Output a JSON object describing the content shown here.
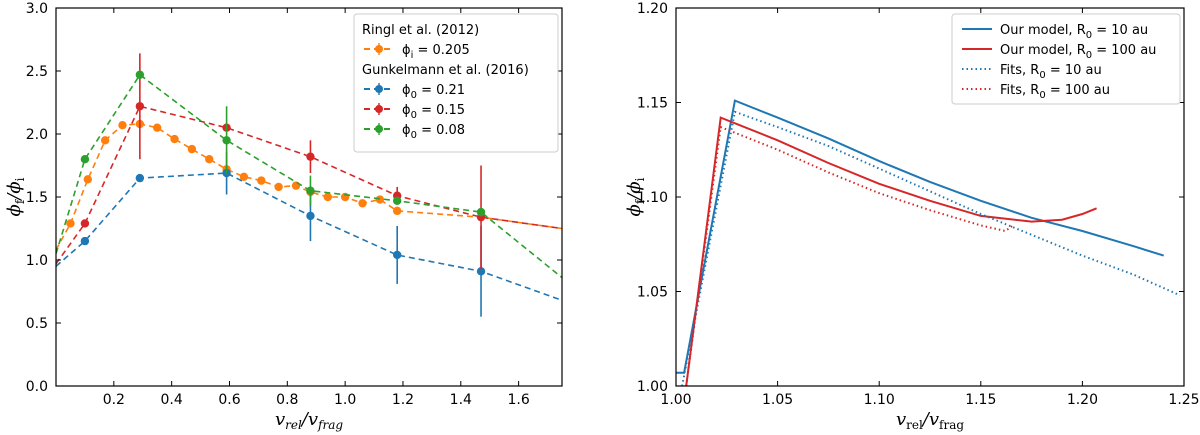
{
  "chart_data": [
    {
      "type": "line",
      "xlabel": "v_rel/v_frag",
      "ylabel": "φ_f/φ_i",
      "xlim": [
        0.0,
        1.75
      ],
      "ylim": [
        0.0,
        3.0
      ],
      "xticks": [
        "0.2",
        "0.4",
        "0.6",
        "0.8",
        "1.0",
        "1.2",
        "1.4",
        "1.6"
      ],
      "yticks": [
        "0.0",
        "0.5",
        "1.0",
        "1.5",
        "2.0",
        "2.5",
        "3.0"
      ],
      "grid": false,
      "legend_position": "top-right",
      "legend_groups": [
        "Ringl et al. (2012)",
        "Gunkelmann et al. (2016)"
      ],
      "series": [
        {
          "name": "ϕ_i = 0.205",
          "group": 0,
          "color": "#ff7f0e",
          "x": [
            0.0,
            0.05,
            0.11,
            0.17,
            0.23,
            0.29,
            0.35,
            0.41,
            0.47,
            0.53,
            0.59,
            0.65,
            0.71,
            0.77,
            0.83,
            0.88,
            0.94,
            1.0,
            1.06,
            1.12,
            1.18,
            1.47,
            1.75
          ],
          "y": [
            1.08,
            1.29,
            1.64,
            1.95,
            2.07,
            2.08,
            2.05,
            1.96,
            1.88,
            1.8,
            1.72,
            1.66,
            1.63,
            1.58,
            1.59,
            1.54,
            1.5,
            1.5,
            1.45,
            1.48,
            1.39,
            1.34,
            1.25
          ],
          "markers": [
            1,
            2,
            3,
            4,
            5,
            6,
            7,
            8,
            9,
            10,
            11,
            12,
            13,
            14,
            15,
            16,
            17,
            18,
            19,
            20
          ],
          "err": [
            0,
            0,
            0,
            0,
            0,
            0,
            0,
            0,
            0,
            0,
            0,
            0,
            0,
            0,
            0,
            0,
            0,
            0,
            0,
            0,
            0,
            0,
            0
          ]
        },
        {
          "name": "ϕ_0 = 0.21",
          "group": 1,
          "color": "#1f77b4",
          "x": [
            0.0,
            0.1,
            0.29,
            0.59,
            0.88,
            1.18,
            1.47,
            1.75
          ],
          "y": [
            0.95,
            1.15,
            1.65,
            1.69,
            1.35,
            1.04,
            0.91,
            0.68
          ],
          "markers": [
            1,
            2,
            3,
            4,
            5,
            6
          ],
          "err": [
            0,
            0,
            0,
            0.17,
            0.2,
            0.23,
            0.36,
            0
          ]
        },
        {
          "name": "ϕ_0 = 0.15",
          "group": 1,
          "color": "#d62728",
          "x": [
            0.0,
            0.1,
            0.29,
            0.59,
            0.88,
            1.18,
            1.47,
            1.75
          ],
          "y": [
            0.97,
            1.29,
            2.22,
            2.05,
            1.82,
            1.51,
            1.34,
            1.25
          ],
          "markers": [
            1,
            2,
            3,
            4,
            5,
            6
          ],
          "err": [
            0,
            0,
            0.42,
            0,
            0.13,
            0.07,
            0.41,
            0
          ]
        },
        {
          "name": "ϕ_0 = 0.08",
          "group": 1,
          "color": "#2ca02c",
          "x": [
            0.0,
            0.1,
            0.29,
            0.59,
            0.88,
            1.18,
            1.47,
            1.75
          ],
          "y": [
            1.05,
            1.8,
            2.47,
            1.95,
            1.55,
            1.47,
            1.38,
            0.86
          ],
          "markers": [
            1,
            2,
            3,
            4,
            5,
            6
          ],
          "err": [
            0,
            0,
            0,
            0.27,
            0.12,
            0,
            0,
            0
          ]
        }
      ]
    },
    {
      "type": "line",
      "xlabel": "v_rel/v_frag",
      "ylabel": "ϕ_f/ϕ_i",
      "xlim": [
        1.0,
        1.25
      ],
      "ylim": [
        1.0,
        1.2
      ],
      "xticks": [
        "1.00",
        "1.05",
        "1.10",
        "1.15",
        "1.20",
        "1.25"
      ],
      "yticks": [
        "1.00",
        "1.05",
        "1.10",
        "1.15",
        "1.20"
      ],
      "grid": false,
      "legend_position": "top-right",
      "series": [
        {
          "name": "Our model, R_0 = 10 au",
          "color": "#1f77b4",
          "dash": "solid",
          "x": [
            1.0,
            1.004,
            1.029,
            1.05,
            1.075,
            1.1,
            1.125,
            1.15,
            1.175,
            1.2,
            1.225,
            1.24
          ],
          "y": [
            1.007,
            1.007,
            1.151,
            1.142,
            1.131,
            1.119,
            1.108,
            1.098,
            1.089,
            1.082,
            1.074,
            1.069
          ]
        },
        {
          "name": "Our model, R_0 = 100 au",
          "color": "#d62728",
          "dash": "solid",
          "x": [
            1.005,
            1.022,
            1.05,
            1.075,
            1.1,
            1.125,
            1.15,
            1.175,
            1.19,
            1.2,
            1.207
          ],
          "y": [
            1.0,
            1.142,
            1.13,
            1.118,
            1.107,
            1.098,
            1.09,
            1.087,
            1.088,
            1.091,
            1.094
          ]
        },
        {
          "name": "Fits, R_0 = 10 au",
          "color": "#1f77b4",
          "dash": "dotted",
          "x": [
            1.003,
            1.029,
            1.05,
            1.075,
            1.1,
            1.125,
            1.15,
            1.175,
            1.2,
            1.225,
            1.248
          ],
          "y": [
            1.0,
            1.145,
            1.137,
            1.127,
            1.115,
            1.103,
            1.091,
            1.08,
            1.069,
            1.059,
            1.048
          ]
        },
        {
          "name": "Fits, R_0 = 100 au",
          "color": "#d62728",
          "dash": "dotted",
          "x": [
            1.005,
            1.022,
            1.05,
            1.075,
            1.1,
            1.125,
            1.15,
            1.162,
            1.166
          ],
          "y": [
            1.0,
            1.137,
            1.125,
            1.113,
            1.102,
            1.093,
            1.085,
            1.082,
            1.085
          ]
        }
      ]
    }
  ]
}
